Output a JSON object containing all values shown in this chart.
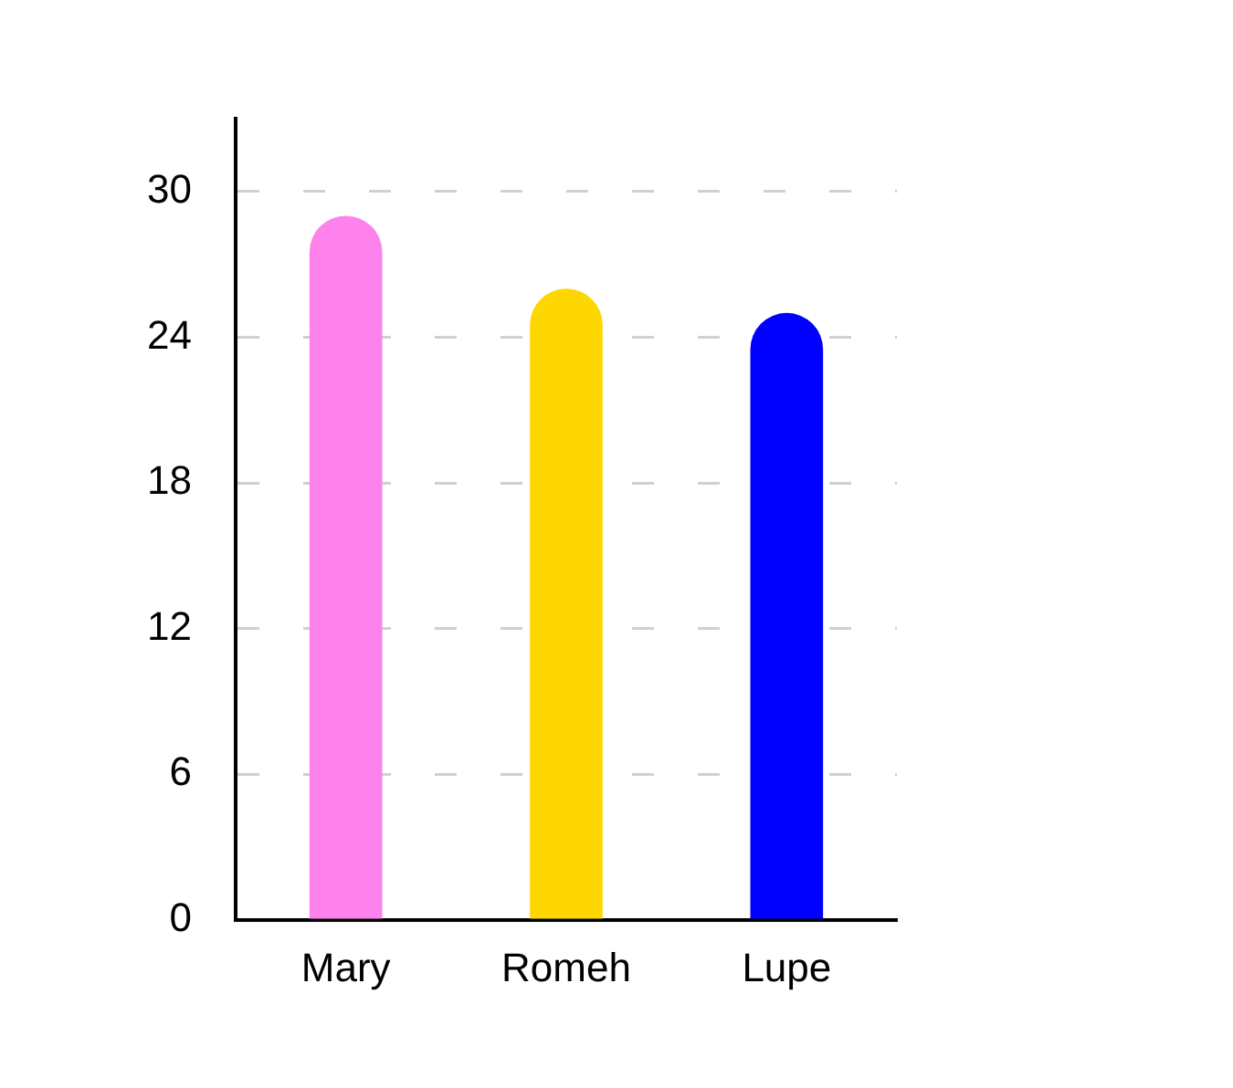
{
  "chart_data": {
    "type": "bar",
    "categories": [
      "Mary",
      "Romeh",
      "Lupe"
    ],
    "values": [
      29,
      26,
      25
    ],
    "colors": [
      "#fd82ec",
      "#fed700",
      "#0000fe"
    ],
    "ylim": [
      0,
      33
    ],
    "yticks": [
      0,
      6,
      12,
      18,
      24,
      30
    ],
    "grid": "y",
    "legend": false
  }
}
